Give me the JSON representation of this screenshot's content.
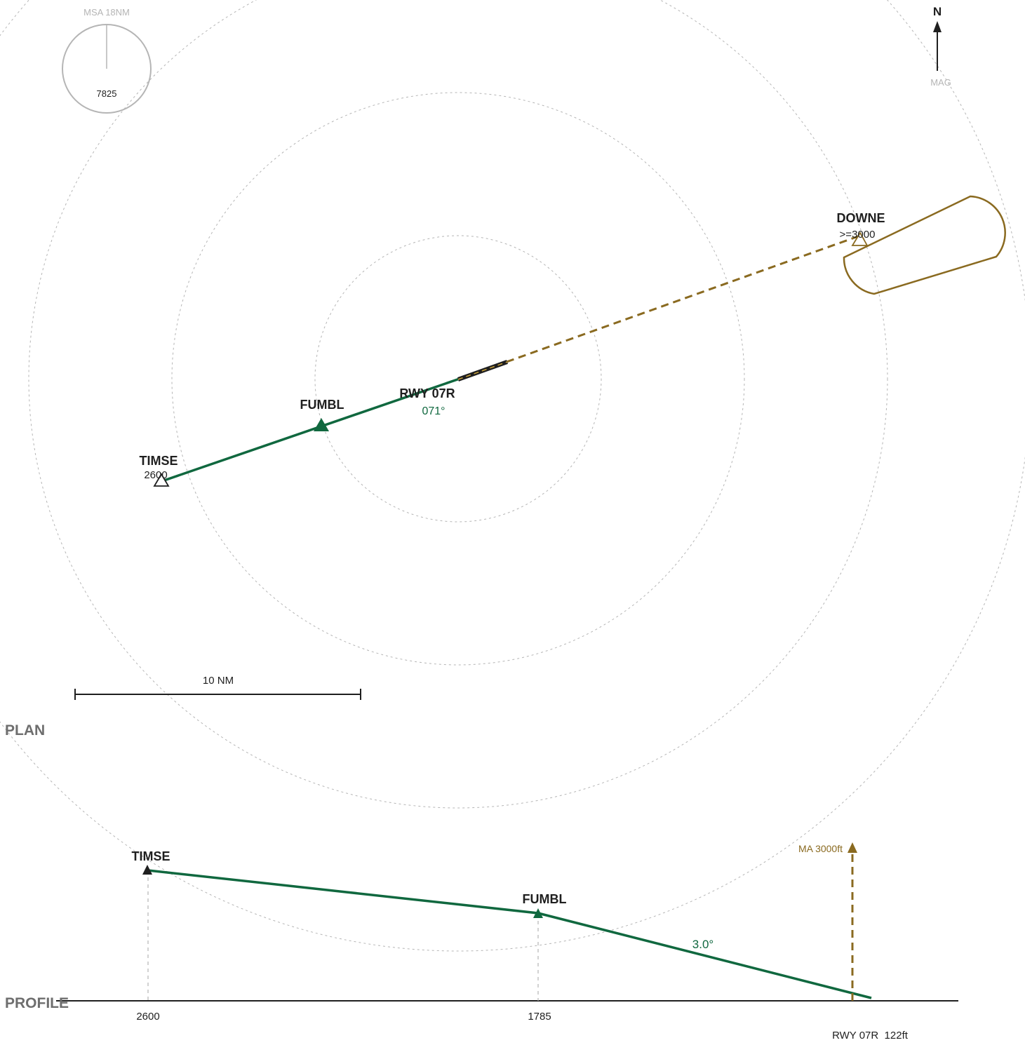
{
  "msa": {
    "label": "MSA 18NM",
    "altitude": "7825"
  },
  "north": {
    "label": "N",
    "sub": "MAG"
  },
  "runway": {
    "name": "RWY 07R",
    "course": "071°",
    "elevation_label": "RWY 07R  122ft"
  },
  "waypoints": {
    "timse": {
      "name": "TIMSE",
      "altitude": "2600"
    },
    "fumbl": {
      "name": "FUMBL"
    },
    "downe": {
      "name": "DOWNE",
      "altitude": ">=3000"
    }
  },
  "scale_bar": {
    "label": "10 NM"
  },
  "sections": {
    "plan": "PLAN",
    "profile": "PROFILE"
  },
  "profile": {
    "timse_label": "TIMSE",
    "fumbl_label": "FUMBL",
    "glide_angle": "3.0°",
    "missed_approach": "MA 3000ft",
    "alt_timse": "2600",
    "alt_fumbl": "1785"
  },
  "colors": {
    "approach": "#10683f",
    "missed": "#8a6a20",
    "rings": "#b5b5b5",
    "ink": "#1f1f1f"
  }
}
